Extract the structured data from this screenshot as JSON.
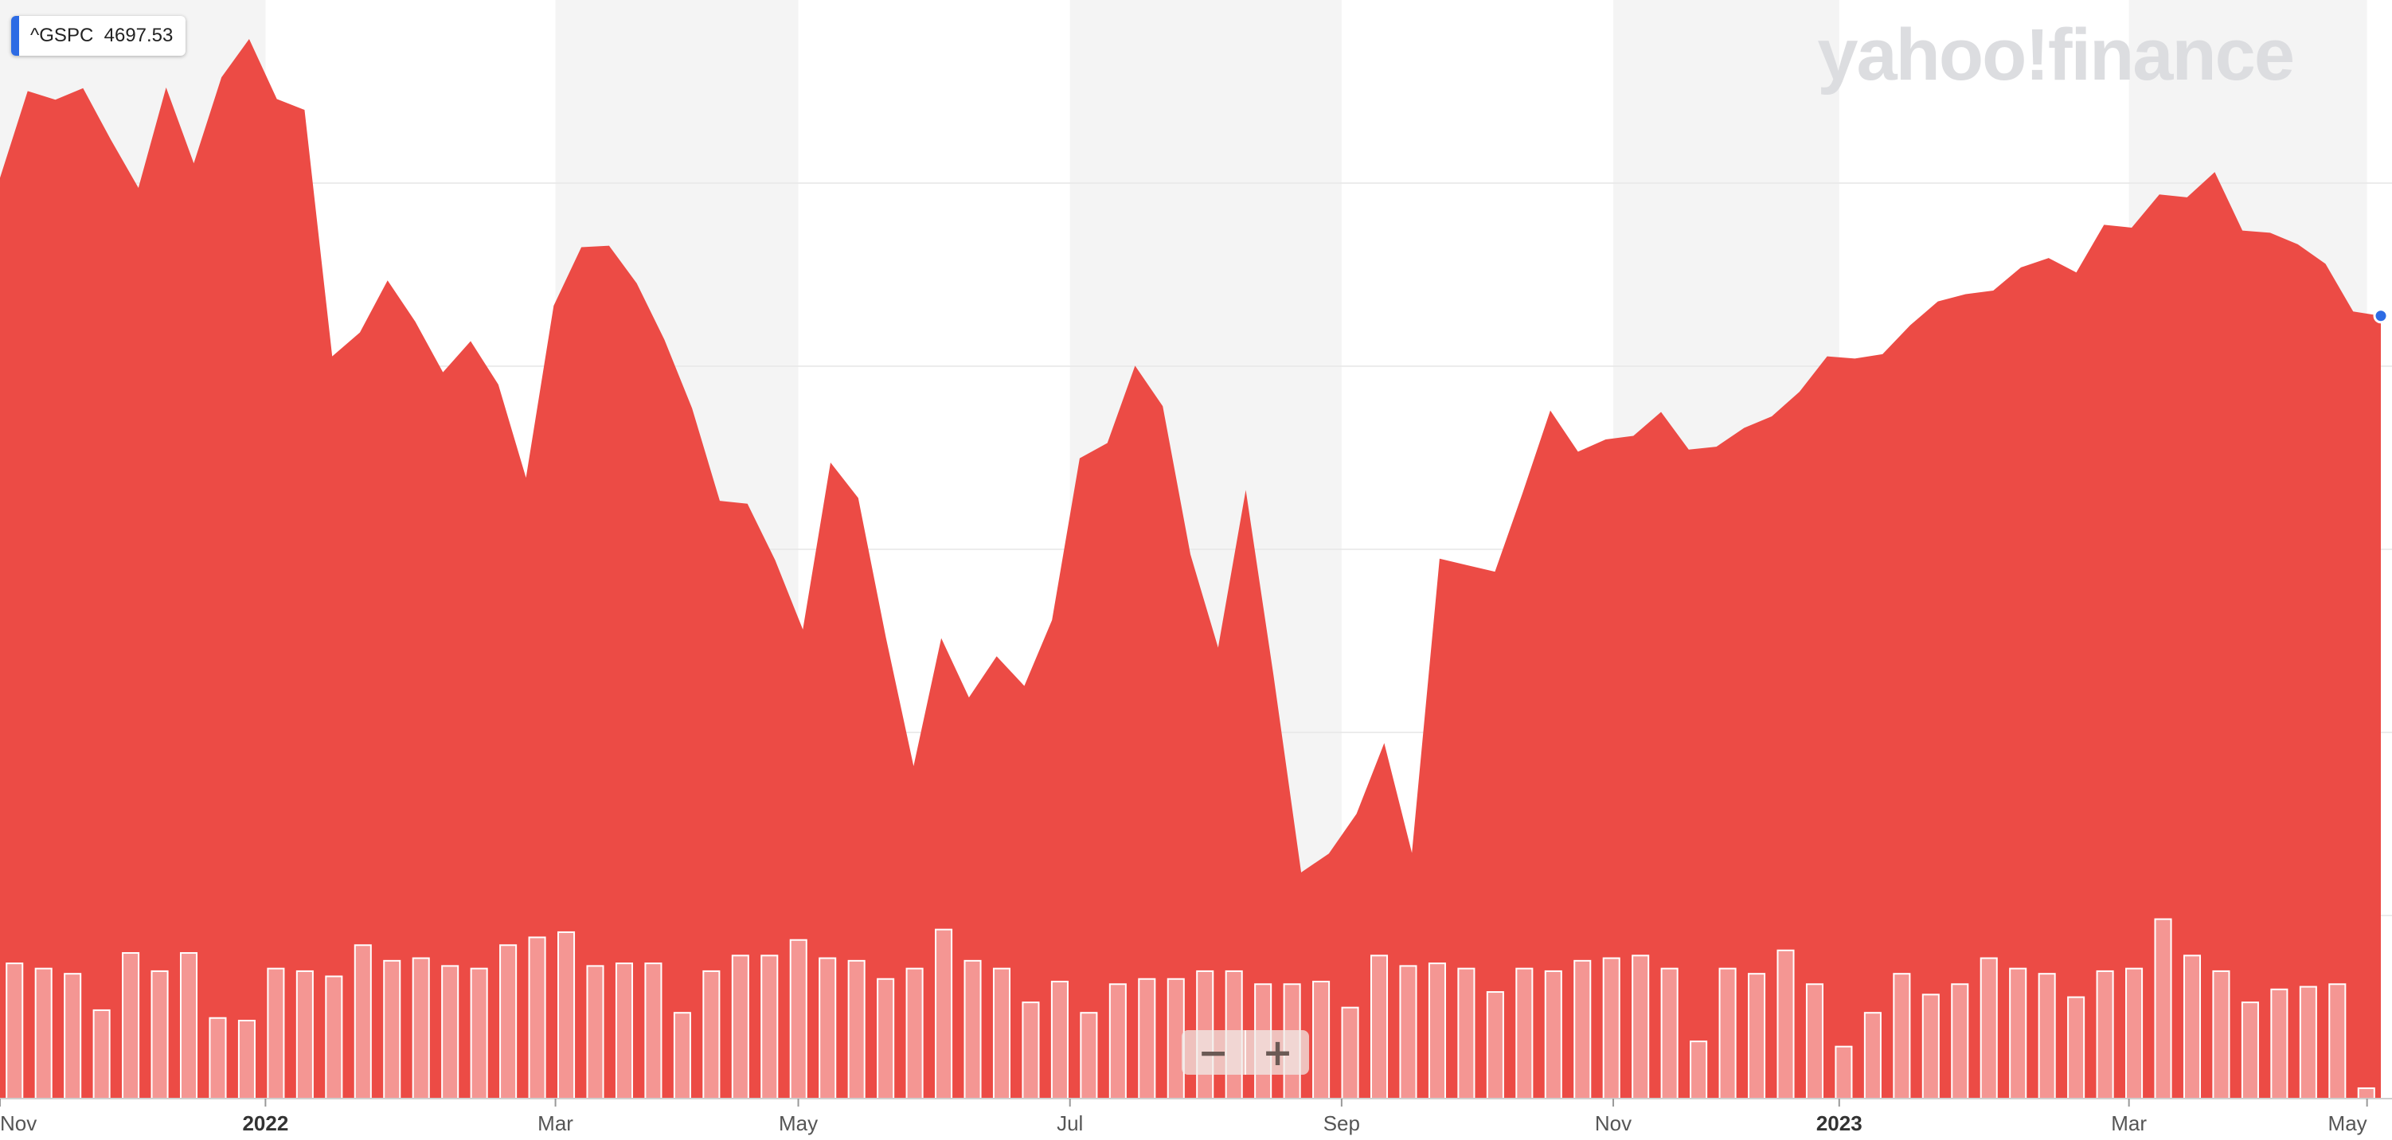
{
  "legend": {
    "symbol": "^GSPC",
    "value": "4697.53",
    "color": "#2d6be4"
  },
  "watermark": "yahoo!finance",
  "zoom": {
    "out": "−",
    "in": "+"
  },
  "colors": {
    "area": "#ec4b45",
    "band": "#f4f4f4",
    "volume_bar_fill": "rgba(255,255,255,0.42)",
    "volume_bar_stroke": "#ffffff",
    "last_point": "#2d6be4"
  },
  "chart_data": {
    "type": "area",
    "series": [
      {
        "name": "^GSPC",
        "values": [
          4574,
          4694,
          4682,
          4698,
          4627,
          4560,
          4699,
          4594,
          4713,
          4766,
          4683,
          4668,
          4327,
          4360,
          4432,
          4375,
          4305,
          4348,
          4288,
          4159,
          4397,
          4478,
          4480,
          4428,
          4350,
          4255,
          4127,
          4123,
          4045,
          3949,
          4180,
          4131,
          3938,
          3760,
          3937,
          3855,
          3912,
          3871,
          3962,
          4186,
          4207,
          4314,
          4258,
          4053,
          3924,
          4142,
          3886,
          3613,
          3639,
          3694,
          3792,
          3640,
          4047,
          4038,
          4029,
          4138,
          4252,
          4195,
          4212,
          4217,
          4250,
          4198,
          4202,
          4228,
          4244,
          4278,
          4327,
          4324,
          4330,
          4370,
          4403,
          4413,
          4418,
          4450,
          4463,
          4443,
          4509,
          4505,
          4551,
          4547,
          4582,
          4501,
          4498,
          4482,
          4455,
          4389,
          4383
        ]
      }
    ],
    "x_index_note": "",
    "x_ticks": [
      {
        "label": "Nov",
        "pos": 0.0
      },
      {
        "label": "2022",
        "pos": 0.1115,
        "bold": true
      },
      {
        "label": "Mar",
        "pos": 0.2333
      },
      {
        "label": "May",
        "pos": 0.3353
      },
      {
        "label": "Jul",
        "pos": 0.4494
      },
      {
        "label": "Sep",
        "pos": 0.5635
      },
      {
        "label": "Nov",
        "pos": 0.6776
      },
      {
        "label": "2023",
        "pos": 0.7725,
        "bold": true
      },
      {
        "label": "Mar",
        "pos": 0.8942
      },
      {
        "label": "May",
        "pos": 0.9942
      }
    ],
    "volume": [
      52,
      50,
      48,
      34,
      56,
      49,
      56,
      31,
      30,
      50,
      49,
      47,
      59,
      53,
      54,
      51,
      50,
      59,
      62,
      64,
      51,
      52,
      52,
      33,
      49,
      55,
      55,
      61,
      54,
      53,
      46,
      50,
      65,
      53,
      50,
      37,
      45,
      33,
      44,
      46,
      46,
      49,
      49,
      44,
      44,
      45,
      35,
      55,
      51,
      52,
      50,
      41,
      50,
      49,
      53,
      54,
      55,
      50,
      22,
      50,
      48,
      57,
      44,
      20,
      33,
      48,
      40,
      44,
      54,
      50,
      48,
      39,
      49,
      50,
      69,
      55,
      49,
      37,
      42,
      43,
      44,
      4
    ],
    "volume_ymax": 100,
    "volume_band": [
      0.37,
      0.62
    ],
    "xlim": [
      0,
      1
    ],
    "ylim": [
      3300,
      4820
    ],
    "grid": true,
    "legend": "top-left"
  }
}
